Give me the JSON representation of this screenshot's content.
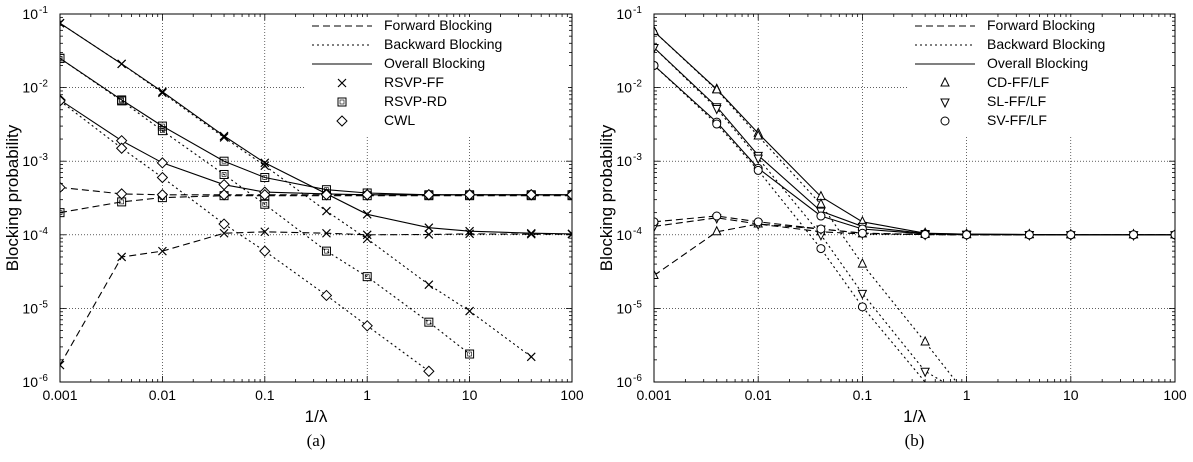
{
  "chart_data": [
    {
      "type": "line",
      "panel_label": "(a)",
      "xlabel": "1/λ",
      "ylabel": "Blocking probability",
      "x_scale": "log",
      "y_scale": "log",
      "xlim": [
        0.001,
        100
      ],
      "ylim": [
        1e-06,
        0.1
      ],
      "grid": true,
      "legend_position": "top-right",
      "x_tick_labels": [
        "0.001",
        "0.01",
        "0.1",
        "1",
        "10",
        "100"
      ],
      "y_tick_labels": [
        {
          "base": "10",
          "exp": "-6"
        },
        {
          "base": "10",
          "exp": "-5"
        },
        {
          "base": "10",
          "exp": "-4"
        },
        {
          "base": "10",
          "exp": "-3"
        },
        {
          "base": "10",
          "exp": "-2"
        },
        {
          "base": "10",
          "exp": "-1"
        }
      ],
      "legend": {
        "line_styles": [
          {
            "label": "Forward Blocking",
            "dash": "dashed"
          },
          {
            "label": "Backward Blocking",
            "dash": "dotted"
          },
          {
            "label": "Overall Blocking",
            "dash": "solid"
          }
        ],
        "markers": [
          {
            "label": "RSVP-FF",
            "marker": "x"
          },
          {
            "label": "RSVP-RD",
            "marker": "square"
          },
          {
            "label": "CWL",
            "marker": "diamond"
          }
        ]
      },
      "series": [
        {
          "method": "RSVP-FF",
          "kind": "overall",
          "dash": "solid",
          "marker": "x",
          "x": [
            0.001,
            0.004,
            0.01,
            0.04,
            0.1,
            1,
            4,
            10,
            40,
            100
          ],
          "y": [
            0.075,
            0.021,
            0.0088,
            0.0022,
            0.00095,
            0.00019,
            0.000125,
            0.000112,
            0.000105,
            0.000103
          ]
        },
        {
          "method": "RSVP-FF",
          "kind": "backward",
          "dash": "dotted",
          "marker": "x",
          "x": [
            0.001,
            0.004,
            0.01,
            0.04,
            0.1,
            0.4,
            1,
            4,
            10,
            40
          ],
          "y": [
            0.075,
            0.021,
            0.0085,
            0.0021,
            0.00087,
            0.00021,
            8.8e-05,
            2.1e-05,
            9.2e-06,
            2.2e-06
          ]
        },
        {
          "method": "RSVP-FF",
          "kind": "forward",
          "dash": "dashed",
          "marker": "x",
          "x": [
            0.001,
            0.004,
            0.01,
            0.04,
            0.1,
            0.4,
            1,
            4,
            10,
            40,
            100
          ],
          "y": [
            1.7e-06,
            5e-05,
            6e-05,
            0.000105,
            0.00011,
            0.000105,
            0.0001,
            0.000101,
            0.000103,
            0.000102,
            0.000102
          ]
        },
        {
          "method": "RSVP-RD",
          "kind": "overall",
          "dash": "solid",
          "marker": "square",
          "x": [
            0.001,
            0.004,
            0.01,
            0.04,
            0.1,
            0.4,
            1,
            4,
            10,
            40,
            100
          ],
          "y": [
            0.025,
            0.0068,
            0.003,
            0.001,
            0.0006,
            0.00041,
            0.00037,
            0.00035,
            0.00035,
            0.00035,
            0.00035
          ]
        },
        {
          "method": "RSVP-RD",
          "kind": "backward",
          "dash": "dotted",
          "marker": "square",
          "x": [
            0.001,
            0.004,
            0.01,
            0.04,
            0.1,
            0.4,
            1,
            4,
            10
          ],
          "y": [
            0.025,
            0.0066,
            0.0026,
            0.00066,
            0.00026,
            6e-05,
            2.7e-05,
            6.5e-06,
            2.4e-06
          ]
        },
        {
          "method": "RSVP-RD",
          "kind": "forward",
          "dash": "dashed",
          "marker": "square",
          "x": [
            0.001,
            0.004,
            0.01,
            0.04,
            0.1,
            0.4,
            1,
            4,
            10,
            40,
            100
          ],
          "y": [
            0.0002,
            0.00028,
            0.00032,
            0.00034,
            0.00034,
            0.00034,
            0.00034,
            0.00034,
            0.00034,
            0.00034,
            0.00034
          ]
        },
        {
          "method": "CWL",
          "kind": "overall",
          "dash": "solid",
          "marker": "diamond",
          "x": [
            0.001,
            0.004,
            0.01,
            0.04,
            0.1,
            0.4,
            1,
            4,
            10,
            40,
            100
          ],
          "y": [
            0.0068,
            0.0019,
            0.00095,
            0.00048,
            0.00038,
            0.00036,
            0.00035,
            0.00035,
            0.00035,
            0.00035,
            0.00035
          ]
        },
        {
          "method": "CWL",
          "kind": "backward",
          "dash": "dotted",
          "marker": "diamond",
          "x": [
            0.001,
            0.004,
            0.01,
            0.04,
            0.1,
            0.4,
            1,
            4
          ],
          "y": [
            0.0066,
            0.0015,
            0.0006,
            0.00014,
            6e-05,
            1.5e-05,
            5.8e-06,
            1.4e-06
          ]
        },
        {
          "method": "CWL",
          "kind": "forward",
          "dash": "dashed",
          "marker": "diamond",
          "x": [
            0.001,
            0.004,
            0.01,
            0.04,
            0.1,
            0.4,
            1,
            4,
            10,
            40,
            100
          ],
          "y": [
            0.00044,
            0.00036,
            0.00035,
            0.00035,
            0.00035,
            0.00035,
            0.00035,
            0.00035,
            0.00035,
            0.00035,
            0.00035
          ]
        }
      ]
    },
    {
      "type": "line",
      "panel_label": "(b)",
      "xlabel": "1/λ",
      "ylabel": "Blocking probability",
      "x_scale": "log",
      "y_scale": "log",
      "xlim": [
        0.001,
        100
      ],
      "ylim": [
        1e-06,
        0.1
      ],
      "grid": true,
      "legend_position": "top-right",
      "x_tick_labels": [
        "0.001",
        "0.01",
        "0.1",
        "1",
        "10",
        "100"
      ],
      "y_tick_labels": [
        {
          "base": "10",
          "exp": "-6"
        },
        {
          "base": "10",
          "exp": "-5"
        },
        {
          "base": "10",
          "exp": "-4"
        },
        {
          "base": "10",
          "exp": "-3"
        },
        {
          "base": "10",
          "exp": "-2"
        },
        {
          "base": "10",
          "exp": "-1"
        }
      ],
      "legend": {
        "line_styles": [
          {
            "label": "Forward Blocking",
            "dash": "dashed"
          },
          {
            "label": "Backward Blocking",
            "dash": "dotted"
          },
          {
            "label": "Overall Blocking",
            "dash": "solid"
          }
        ],
        "markers": [
          {
            "label": "CD-FF/LF",
            "marker": "triangle-up"
          },
          {
            "label": "SL-FF/LF",
            "marker": "triangle-down"
          },
          {
            "label": "SV-FF/LF",
            "marker": "circle"
          }
        ]
      },
      "series": [
        {
          "method": "CD-FF/LF",
          "kind": "overall",
          "dash": "solid",
          "marker": "triangle-up",
          "x": [
            0.001,
            0.004,
            0.01,
            0.04,
            0.1,
            0.4,
            1,
            4,
            10,
            40,
            100
          ],
          "y": [
            0.058,
            0.0095,
            0.0024,
            0.00033,
            0.00015,
            0.000105,
            0.000102,
            0.000101,
            0.0001,
            0.0001,
            0.0001
          ]
        },
        {
          "method": "CD-FF/LF",
          "kind": "backward",
          "dash": "dotted",
          "marker": "triangle-up",
          "x": [
            0.001,
            0.004,
            0.01,
            0.04,
            0.1,
            0.4,
            0.8
          ],
          "y": [
            0.058,
            0.0093,
            0.0022,
            0.00026,
            4e-05,
            3.5e-06,
            1e-06
          ]
        },
        {
          "method": "CD-FF/LF",
          "kind": "forward",
          "dash": "dashed",
          "marker": "triangle-up",
          "x": [
            0.001,
            0.004,
            0.01,
            0.04,
            0.1,
            0.4,
            1,
            4,
            10,
            40,
            100
          ],
          "y": [
            2.8e-05,
            0.00011,
            0.00014,
            0.00011,
            0.000103,
            0.000101,
            0.0001,
            0.0001,
            0.0001,
            0.0001,
            0.0001
          ]
        },
        {
          "method": "SL-FF/LF",
          "kind": "overall",
          "dash": "solid",
          "marker": "triangle-down",
          "x": [
            0.001,
            0.004,
            0.01,
            0.04,
            0.1,
            0.4,
            1,
            4,
            10,
            40,
            100
          ],
          "y": [
            0.035,
            0.0055,
            0.0012,
            0.00021,
            0.00013,
            0.000104,
            0.000102,
            0.000101,
            0.0001,
            0.0001,
            0.0001
          ]
        },
        {
          "method": "SL-FF/LF",
          "kind": "backward",
          "dash": "dotted",
          "marker": "triangle-down",
          "x": [
            0.001,
            0.004,
            0.01,
            0.04,
            0.1,
            0.4,
            0.6
          ],
          "y": [
            0.035,
            0.0052,
            0.0011,
            0.0001,
            1.6e-05,
            1.4e-06,
            1e-06
          ]
        },
        {
          "method": "SL-FF/LF",
          "kind": "forward",
          "dash": "dashed",
          "marker": "triangle-down",
          "x": [
            0.001,
            0.004,
            0.01,
            0.04,
            0.1,
            0.4,
            1,
            4,
            10,
            40,
            100
          ],
          "y": [
            0.00013,
            0.00017,
            0.00014,
            0.00012,
            0.000105,
            0.000101,
            0.0001,
            0.0001,
            0.0001,
            0.0001,
            0.0001
          ]
        },
        {
          "method": "SV-FF/LF",
          "kind": "overall",
          "dash": "solid",
          "marker": "circle",
          "x": [
            0.001,
            0.004,
            0.01,
            0.04,
            0.1,
            0.4,
            1,
            4,
            10,
            40,
            100
          ],
          "y": [
            0.02,
            0.0034,
            0.0008,
            0.00018,
            0.00012,
            0.000103,
            0.000101,
            0.0001,
            0.0001,
            0.0001,
            0.0001
          ]
        },
        {
          "method": "SV-FF/LF",
          "kind": "backward",
          "dash": "dotted",
          "marker": "circle",
          "x": [
            0.001,
            0.004,
            0.01,
            0.04,
            0.1,
            0.4
          ],
          "y": [
            0.02,
            0.0032,
            0.00075,
            6.5e-05,
            1.05e-05,
            1e-06
          ]
        },
        {
          "method": "SV-FF/LF",
          "kind": "forward",
          "dash": "dashed",
          "marker": "circle",
          "x": [
            0.001,
            0.004,
            0.01,
            0.04,
            0.1,
            0.4,
            1,
            4,
            10,
            40,
            100
          ],
          "y": [
            0.00015,
            0.00018,
            0.00015,
            0.00012,
            0.000105,
            0.000101,
            0.0001,
            0.0001,
            0.0001,
            0.0001,
            0.0001
          ]
        }
      ]
    }
  ]
}
